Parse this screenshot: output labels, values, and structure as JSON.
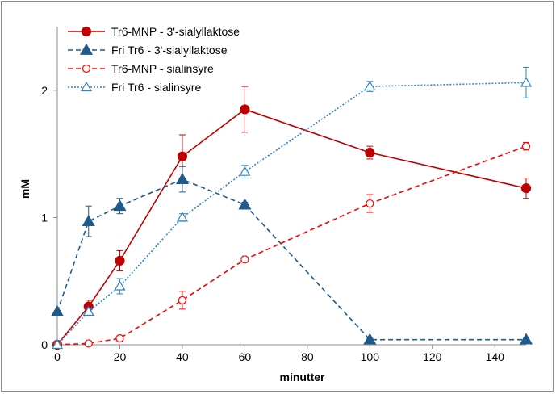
{
  "chart_data": {
    "type": "line",
    "title": "",
    "xlabel": "minutter",
    "ylabel": "mM",
    "xlim": [
      0,
      150
    ],
    "ylim": [
      0,
      2.5
    ],
    "xticks": [
      0,
      20,
      40,
      60,
      80,
      100,
      120,
      140
    ],
    "yticks": [
      0,
      1,
      2
    ],
    "grid": false,
    "legend_position": "top-left",
    "series": [
      {
        "name": "Tr6-MNP - 3'-sialyllaktose",
        "color": "#c00000",
        "dash": "solid",
        "marker": "filled-circle",
        "x": [
          0,
          10,
          20,
          40,
          60,
          100,
          150
        ],
        "y": [
          0.0,
          0.3,
          0.66,
          1.48,
          1.85,
          1.51,
          1.23
        ],
        "err": [
          0.01,
          0.05,
          0.08,
          0.17,
          0.18,
          0.05,
          0.08
        ]
      },
      {
        "name": "Fri Tr6 - 3'-sialyllaktose",
        "color": "#1f5a8c",
        "dash": "dashed",
        "marker": "filled-triangle",
        "x": [
          0,
          10,
          20,
          40,
          60,
          100,
          150
        ],
        "y": [
          0.26,
          0.97,
          1.09,
          1.3,
          1.1,
          0.04,
          0.04
        ],
        "err": [
          0.01,
          0.12,
          0.06,
          0.1,
          0.02,
          0.01,
          0.01
        ]
      },
      {
        "name": "Tr6-MNP - sialinsyre",
        "color": "#ff0000",
        "dash": "dashed",
        "marker": "open-circle",
        "x": [
          0,
          10,
          20,
          40,
          60,
          100,
          150
        ],
        "y": [
          0.0,
          0.01,
          0.05,
          0.35,
          0.67,
          1.11,
          1.56
        ],
        "err": [
          0.01,
          0.01,
          0.02,
          0.07,
          0.02,
          0.07,
          0.03
        ]
      },
      {
        "name": "Fri Tr6 - sialinsyre",
        "color": "#2e84c6",
        "dash": "dotted",
        "marker": "open-triangle",
        "x": [
          0,
          10,
          20,
          40,
          60,
          100,
          150
        ],
        "y": [
          0.0,
          0.26,
          0.46,
          1.0,
          1.36,
          2.03,
          2.06
        ],
        "err": [
          0.01,
          0.03,
          0.06,
          0.03,
          0.05,
          0.04,
          0.12
        ]
      }
    ]
  }
}
